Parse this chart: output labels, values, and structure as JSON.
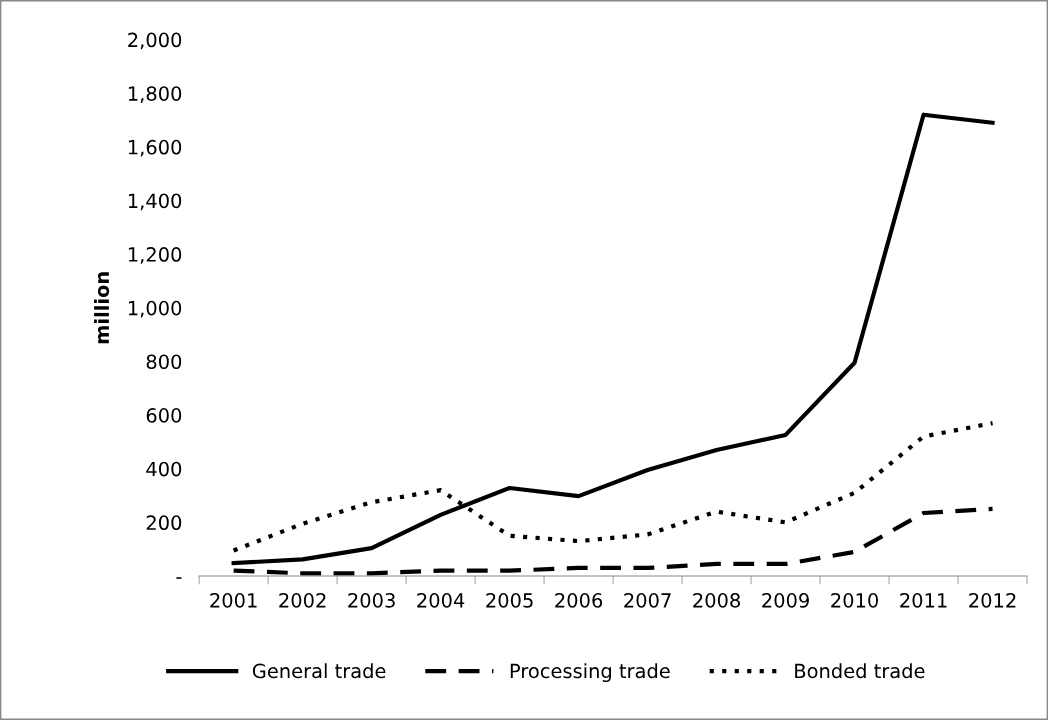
{
  "chart_data": {
    "type": "line",
    "ylabel": "million",
    "categories": [
      "2001",
      "2002",
      "2003",
      "2004",
      "2005",
      "2006",
      "2007",
      "2008",
      "2009",
      "2010",
      "2011",
      "2012"
    ],
    "series": [
      {
        "name": "General trade",
        "color": "#000000",
        "line_style": "solid",
        "values": [
          48,
          62,
          104,
          228,
          328,
          298,
          395,
          470,
          526,
          795,
          1720,
          1690
        ]
      },
      {
        "name": "Processing trade",
        "color": "#000000",
        "line_style": "dashed",
        "values": [
          20,
          10,
          10,
          20,
          20,
          30,
          30,
          45,
          45,
          90,
          235,
          250
        ]
      },
      {
        "name": "Bonded trade",
        "color": "#000000",
        "line_style": "dotted",
        "values": [
          95,
          195,
          275,
          320,
          150,
          130,
          155,
          240,
          200,
          310,
          520,
          570
        ]
      }
    ],
    "ylim": [
      0,
      2000
    ],
    "yticks": [
      {
        "value": 0,
        "label": "-"
      },
      {
        "value": 200,
        "label": "200"
      },
      {
        "value": 400,
        "label": "400"
      },
      {
        "value": 600,
        "label": "600"
      },
      {
        "value": 800,
        "label": "800"
      },
      {
        "value": 1000,
        "label": "1,000"
      },
      {
        "value": 1200,
        "label": "1,200"
      },
      {
        "value": 1400,
        "label": "1,400"
      },
      {
        "value": 1600,
        "label": "1,600"
      },
      {
        "value": 1800,
        "label": "1,800"
      },
      {
        "value": 2000,
        "label": "2,000"
      }
    ],
    "grid": false,
    "legend": "bottom",
    "marker": "none"
  }
}
